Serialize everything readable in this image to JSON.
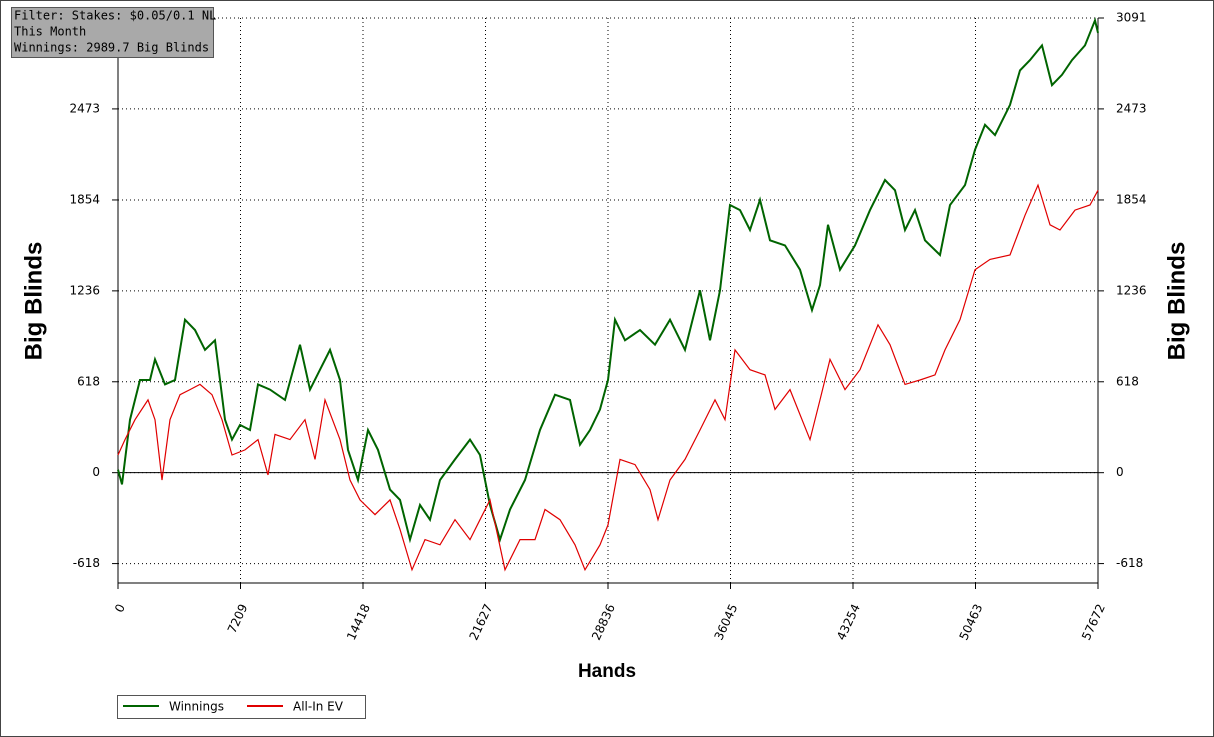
{
  "chart_data": {
    "type": "line",
    "filter_lines": [
      "Filter: Stakes: $0.05/0.1 NL",
      "This Month",
      "Winnings: 2989.7 Big Blinds"
    ],
    "y_label": "Big Blinds",
    "y2_label": "Big Blinds",
    "x_label": "Hands",
    "xlim": [
      0,
      57672
    ],
    "xticks": [
      0,
      7209,
      14418,
      21627,
      28836,
      36045,
      43254,
      50463,
      57672
    ],
    "ylim": [
      -750,
      3091
    ],
    "yticks": [
      -618,
      0,
      618,
      1236,
      1854,
      2473,
      3091
    ],
    "grid": true,
    "series": [
      {
        "name": "Winnings",
        "color": "#006400",
        "x": [
          0,
          235,
          706,
          1295,
          1883,
          2177,
          2766,
          3354,
          3943,
          4531,
          5120,
          5708,
          6297,
          6709,
          7180,
          7768,
          8239,
          8945,
          9828,
          10710,
          11299,
          11887,
          12476,
          13064,
          13535,
          14124,
          14712,
          15301,
          16007,
          16595,
          17184,
          17772,
          18361,
          18949,
          19832,
          20715,
          21303,
          21892,
          22480,
          23069,
          23952,
          24834,
          25717,
          26600,
          27188,
          27777,
          28365,
          28836,
          29248,
          29836,
          30719,
          31602,
          32484,
          33367,
          34250,
          34838,
          35427,
          36015,
          36604,
          37192,
          37781,
          38369,
          39252,
          40135,
          40841,
          41312,
          41783,
          42489,
          43372,
          44254,
          45137,
          45726,
          46314,
          46903,
          47491,
          48374,
          48963,
          49845,
          50434,
          51022,
          51611,
          52494,
          53082,
          53671,
          54377,
          54966,
          55554,
          56143,
          56908,
          57497,
          57672
        ],
        "values": [
          20,
          -80,
          360,
          630,
          630,
          770,
          600,
          630,
          1040,
          970,
          835,
          900,
          360,
          225,
          325,
          290,
          600,
          565,
          495,
          870,
          565,
          700,
          835,
          630,
          155,
          -50,
          290,
          155,
          -115,
          -185,
          -455,
          -220,
          -320,
          -50,
          90,
          225,
          120,
          -220,
          -455,
          -250,
          -50,
          290,
          530,
          495,
          190,
          290,
          430,
          630,
          1040,
          900,
          970,
          870,
          1040,
          835,
          1240,
          900,
          1240,
          1820,
          1785,
          1650,
          1855,
          1580,
          1545,
          1380,
          1105,
          1275,
          1685,
          1380,
          1545,
          1785,
          1990,
          1920,
          1650,
          1785,
          1580,
          1480,
          1820,
          1955,
          2195,
          2365,
          2295,
          2500,
          2735,
          2805,
          2905,
          2635,
          2705,
          2805,
          2905,
          3075,
          2990
        ]
      },
      {
        "name": "All-In EV",
        "color": "#e00000",
        "x": [
          0,
          412,
          1000,
          1766,
          2177,
          2589,
          3060,
          3649,
          4237,
          4826,
          5532,
          6120,
          6709,
          7474,
          8239,
          8827,
          9239,
          10122,
          11005,
          11593,
          12182,
          13064,
          13653,
          14241,
          15124,
          16007,
          16595,
          17301,
          18066,
          18949,
          19832,
          20715,
          21303,
          21892,
          22775,
          23657,
          24540,
          25129,
          26011,
          26894,
          27483,
          28365,
          28836,
          29542,
          30425,
          31308,
          31779,
          32484,
          33367,
          34250,
          35133,
          35721,
          36310,
          37192,
          38075,
          38664,
          39547,
          40724,
          41312,
          41901,
          42783,
          43666,
          44726,
          45432,
          46314,
          47197,
          48080,
          48669,
          49551,
          50434,
          51317,
          52494,
          53376,
          54142,
          54848,
          55437,
          56320,
          57202,
          57672
        ],
        "values": [
          120,
          225,
          360,
          495,
          360,
          -50,
          360,
          530,
          565,
          600,
          530,
          360,
          120,
          155,
          225,
          -15,
          260,
          225,
          360,
          90,
          495,
          225,
          -50,
          -185,
          -285,
          -185,
          -385,
          -660,
          -455,
          -490,
          -320,
          -455,
          -320,
          -185,
          -660,
          -455,
          -455,
          -250,
          -320,
          -490,
          -660,
          -490,
          -355,
          90,
          55,
          -115,
          -320,
          -50,
          90,
          290,
          495,
          360,
          835,
          700,
          665,
          430,
          565,
          225,
          495,
          770,
          565,
          700,
          1005,
          870,
          600,
          630,
          665,
          835,
          1040,
          1380,
          1450,
          1480,
          1750,
          1955,
          1685,
          1650,
          1785,
          1820,
          1920
        ]
      }
    ]
  }
}
